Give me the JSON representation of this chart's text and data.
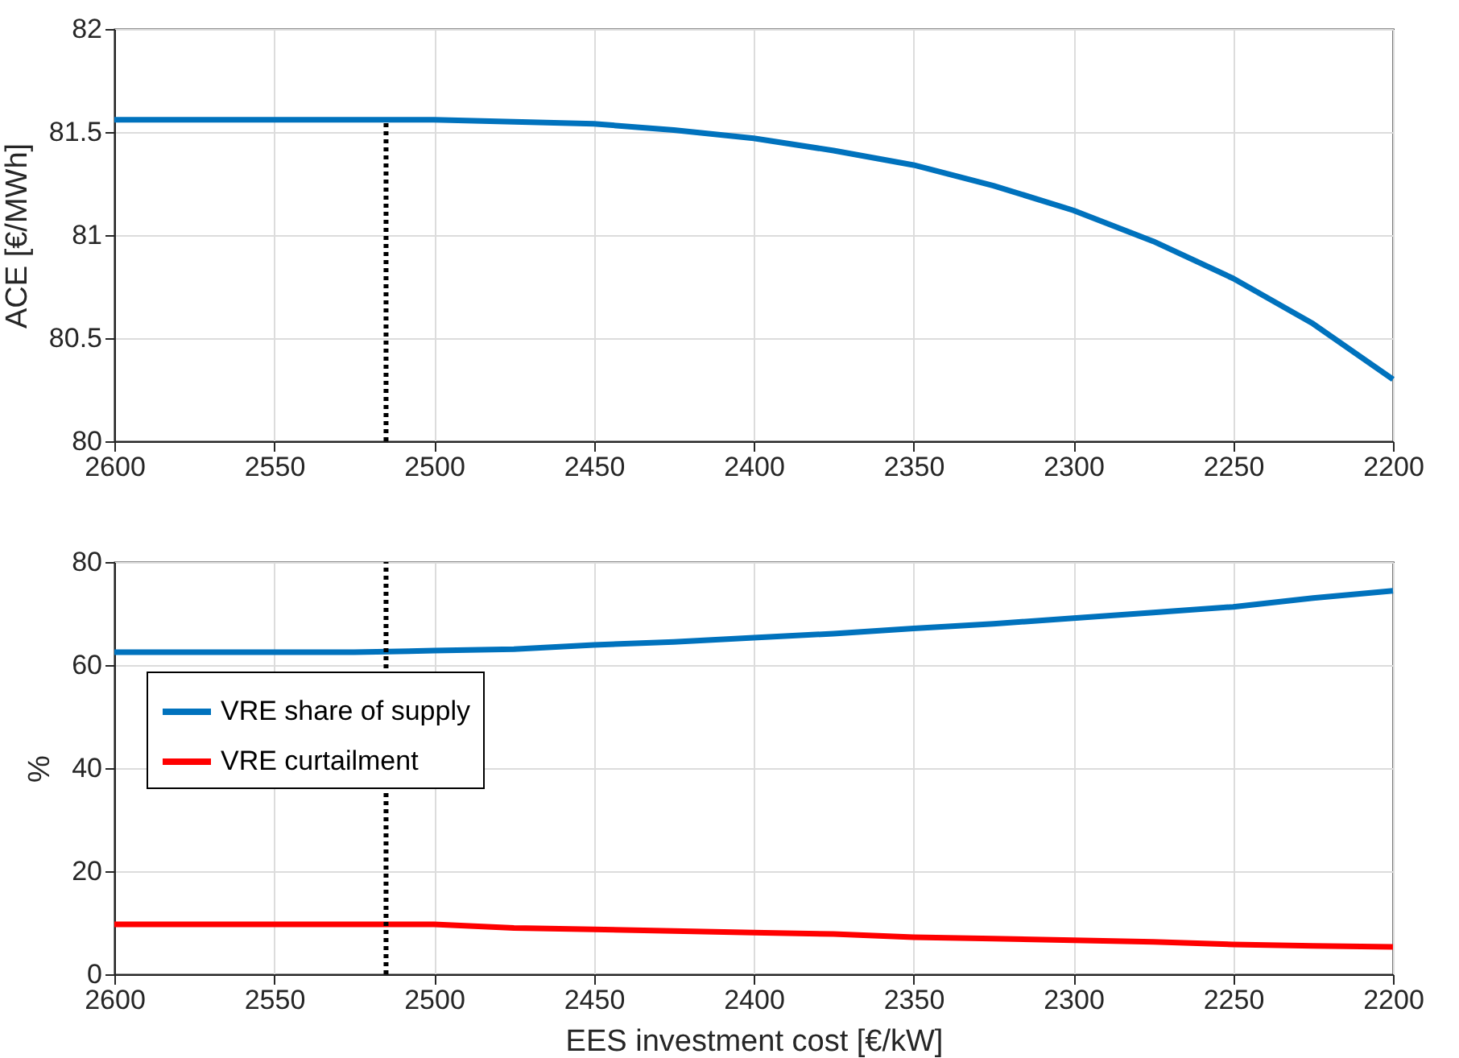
{
  "chart_data": [
    {
      "type": "line",
      "ylabel": "ACE [€/MWh]",
      "x": [
        2600,
        2575,
        2550,
        2525,
        2500,
        2475,
        2450,
        2425,
        2400,
        2375,
        2350,
        2325,
        2300,
        2275,
        2250,
        2225,
        2200
      ],
      "series": [
        {
          "color": "#0072bd",
          "values": [
            81.56,
            81.56,
            81.56,
            81.56,
            81.56,
            81.55,
            81.54,
            81.51,
            81.47,
            81.41,
            81.34,
            81.24,
            81.12,
            80.97,
            80.79,
            80.57,
            80.3
          ]
        }
      ],
      "xlim": [
        2600,
        2200
      ],
      "xticks": [
        2600,
        2550,
        2500,
        2450,
        2400,
        2350,
        2300,
        2250,
        2200
      ],
      "ylim": [
        80,
        82
      ],
      "yticks": [
        80,
        80.5,
        81,
        81.5,
        82
      ],
      "grid": true,
      "line_style": "solid",
      "ref_lines": [
        {
          "axis": "x",
          "value": 2515,
          "color": "#000000",
          "line_style": "dotted"
        }
      ]
    },
    {
      "type": "line",
      "xlabel": "EES investment cost [€/kW]",
      "ylabel": "%",
      "x": [
        2600,
        2575,
        2550,
        2525,
        2500,
        2475,
        2450,
        2425,
        2400,
        2375,
        2350,
        2325,
        2300,
        2275,
        2250,
        2225,
        2200
      ],
      "series": [
        {
          "name": "VRE share of supply",
          "color": "#0072bd",
          "values": [
            62.5,
            62.5,
            62.5,
            62.5,
            62.8,
            63.1,
            63.9,
            64.5,
            65.3,
            66.1,
            67.1,
            68.0,
            69.1,
            70.2,
            71.3,
            73.0,
            74.4
          ]
        },
        {
          "name": "VRE curtailment",
          "color": "#ff0000",
          "values": [
            9.7,
            9.7,
            9.7,
            9.7,
            9.7,
            9.0,
            8.7,
            8.4,
            8.1,
            7.8,
            7.2,
            6.9,
            6.6,
            6.3,
            5.8,
            5.5,
            5.3
          ]
        }
      ],
      "xlim": [
        2600,
        2200
      ],
      "xticks": [
        2600,
        2550,
        2500,
        2450,
        2400,
        2350,
        2300,
        2250,
        2200
      ],
      "ylim": [
        0,
        80
      ],
      "yticks": [
        0,
        20,
        40,
        60,
        80
      ],
      "grid": true,
      "legend": "left",
      "line_style": "solid",
      "ref_lines": [
        {
          "axis": "x",
          "value": 2515,
          "color": "#000000",
          "line_style": "dotted"
        }
      ]
    }
  ]
}
